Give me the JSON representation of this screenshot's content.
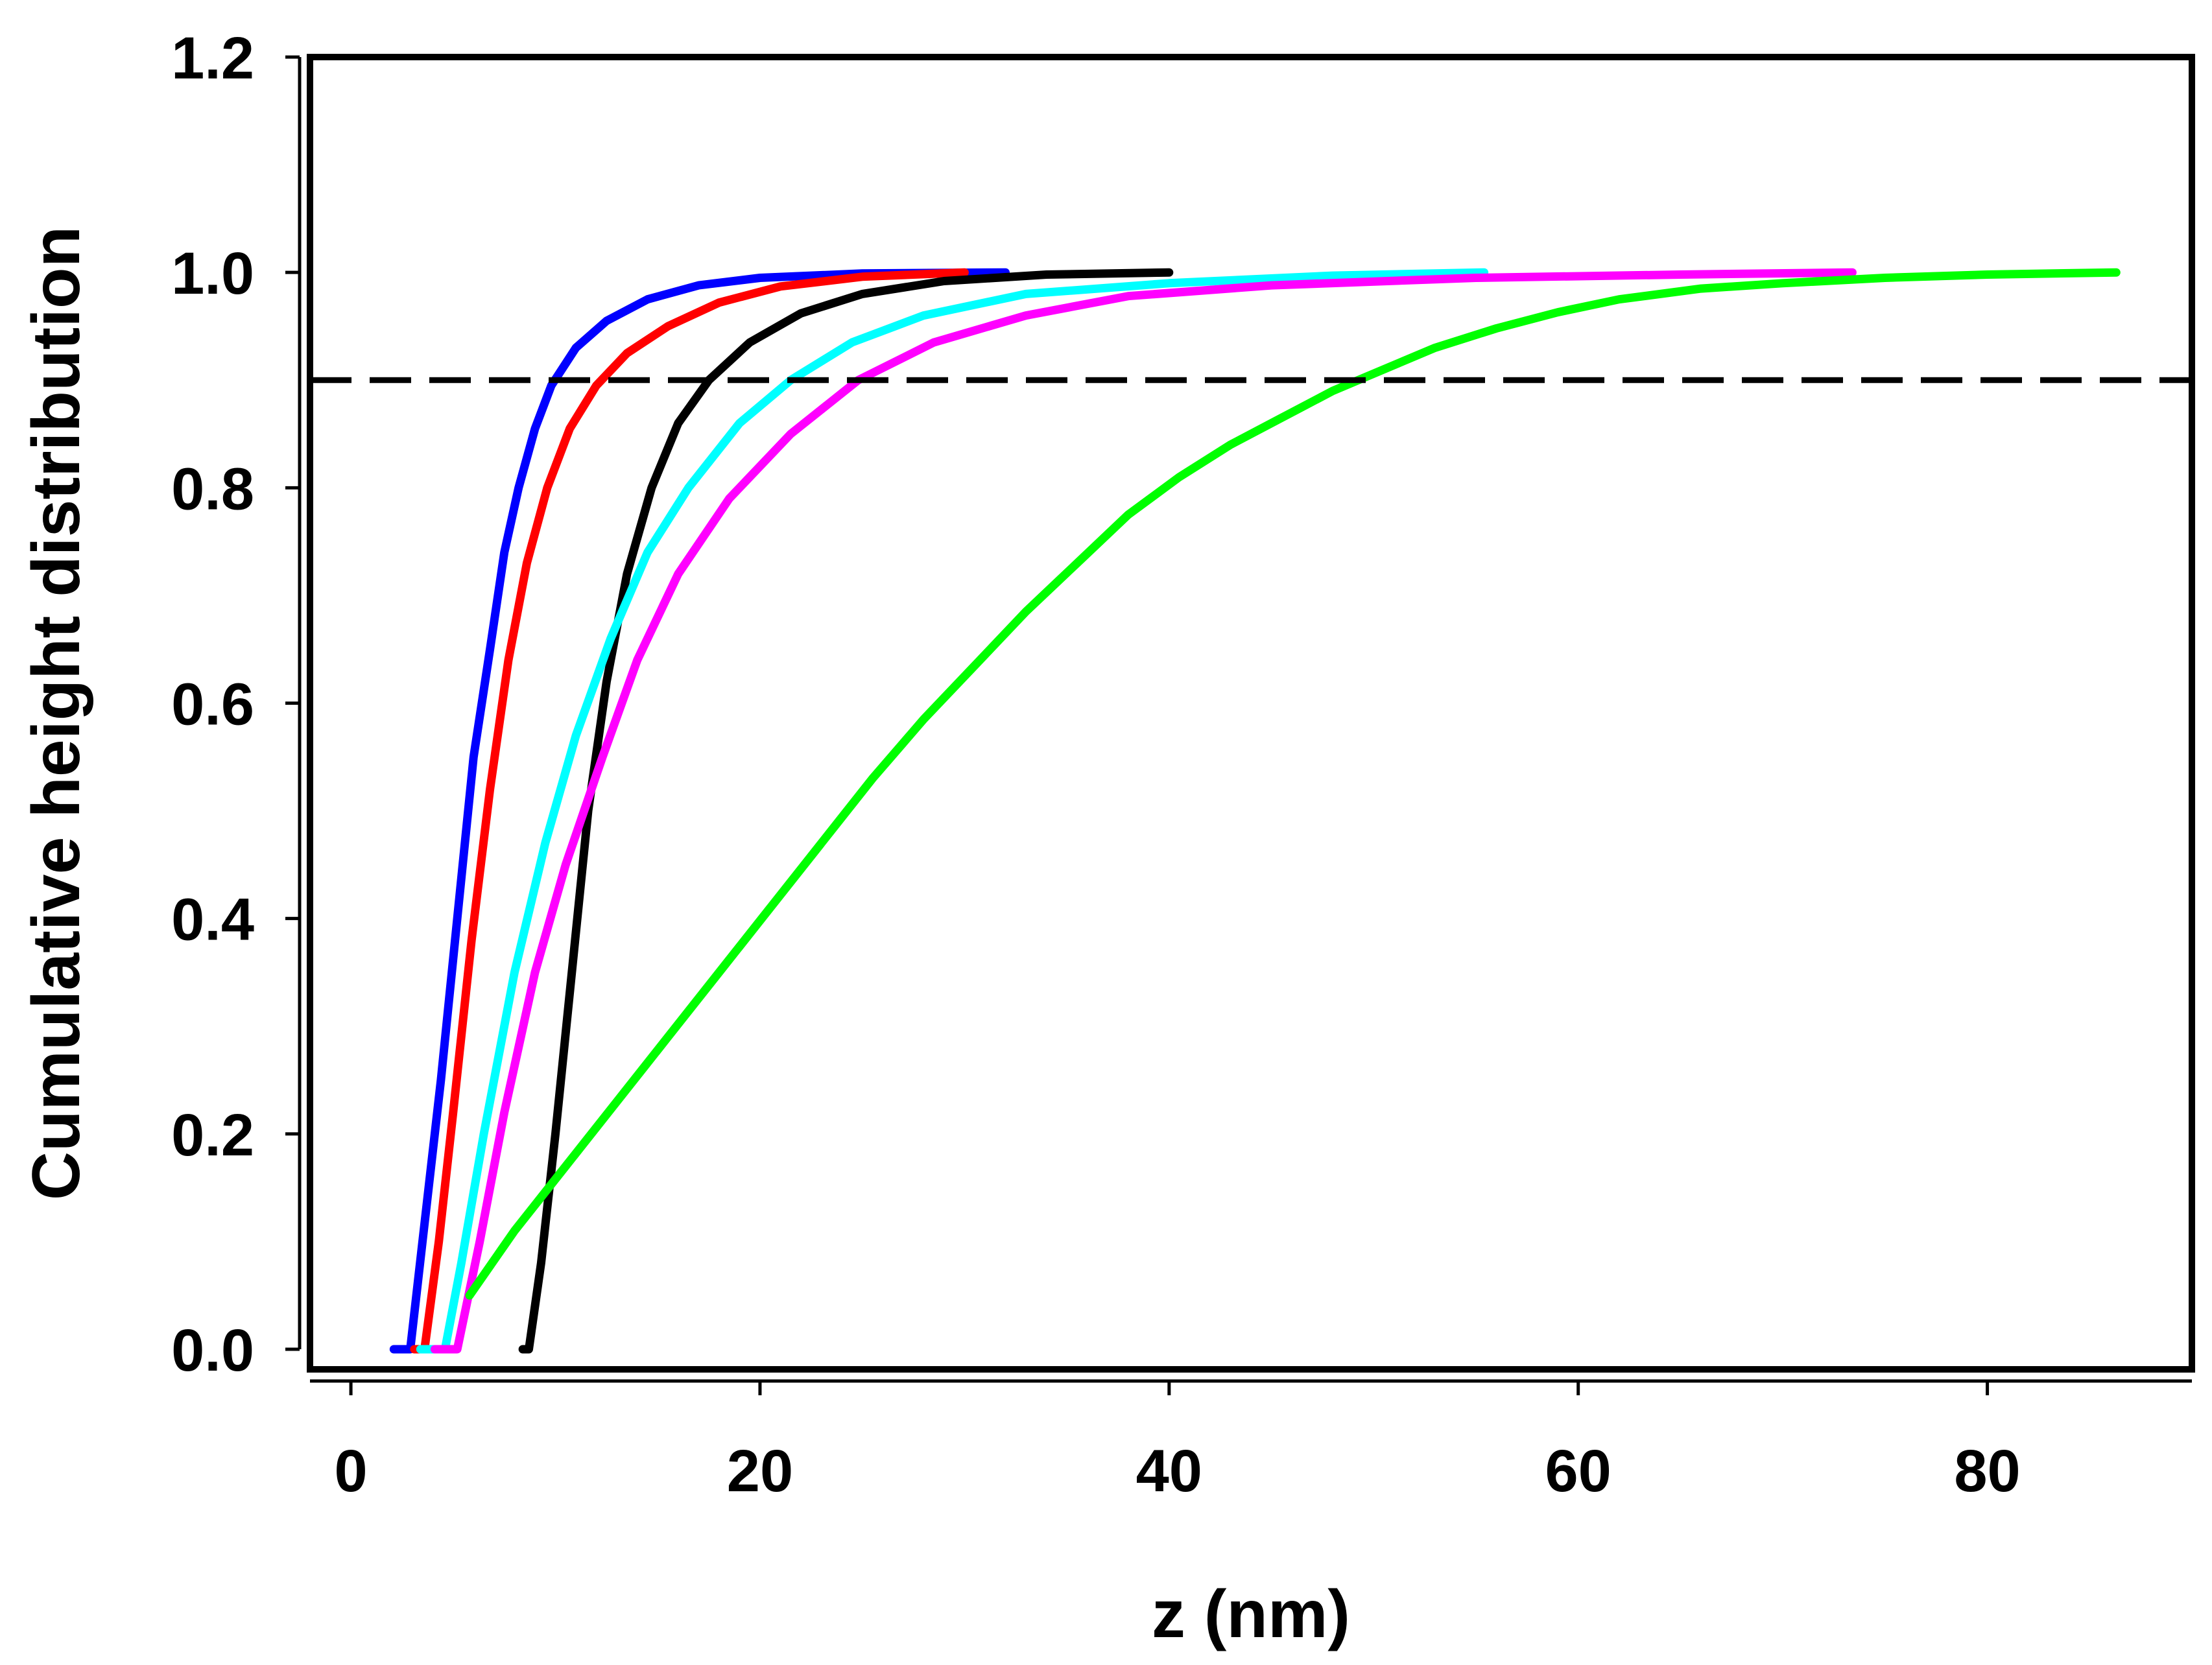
{
  "chart_data": {
    "type": "line",
    "title": "",
    "xlabel": "z (nm)",
    "ylabel": "Cumulative height distribution",
    "xlim": [
      -2,
      90
    ],
    "ylim": [
      0,
      1.2
    ],
    "xticks": [
      "0",
      "20",
      "40",
      "60",
      "80"
    ],
    "xtick_values": [
      0,
      20,
      40,
      60,
      80
    ],
    "yticks": [
      "0.0",
      "0.2",
      "0.4",
      "0.6",
      "0.8",
      "1.0",
      "1.2"
    ],
    "ytick_values": [
      0,
      0.2,
      0.4,
      0.6,
      0.8,
      1.0,
      1.2
    ],
    "grid": false,
    "reference_line": {
      "y": 0.9,
      "style": "dashed",
      "color": "#000000"
    },
    "series": [
      {
        "color": "#0000ff",
        "points": [
          [
            2.1,
            0
          ],
          [
            2.9,
            0
          ],
          [
            3.5,
            0.1
          ],
          [
            4.4,
            0.25
          ],
          [
            5.2,
            0.4
          ],
          [
            6.0,
            0.55
          ],
          [
            6.8,
            0.65
          ],
          [
            7.5,
            0.74
          ],
          [
            8.2,
            0.8
          ],
          [
            9.0,
            0.855
          ],
          [
            9.8,
            0.895
          ],
          [
            11,
            0.93
          ],
          [
            12.5,
            0.955
          ],
          [
            14.5,
            0.975
          ],
          [
            17,
            0.988
          ],
          [
            20,
            0.995
          ],
          [
            25,
            0.999
          ],
          [
            32,
            1.0
          ]
        ]
      },
      {
        "color": "#ff0000",
        "points": [
          [
            3.1,
            0
          ],
          [
            3.6,
            0
          ],
          [
            4.3,
            0.1
          ],
          [
            5.0,
            0.22
          ],
          [
            5.9,
            0.38
          ],
          [
            6.8,
            0.52
          ],
          [
            7.7,
            0.64
          ],
          [
            8.6,
            0.73
          ],
          [
            9.6,
            0.8
          ],
          [
            10.7,
            0.855
          ],
          [
            12,
            0.895
          ],
          [
            13.5,
            0.925
          ],
          [
            15.5,
            0.95
          ],
          [
            18,
            0.972
          ],
          [
            21,
            0.987
          ],
          [
            25,
            0.996
          ],
          [
            30,
            1.0
          ]
        ]
      },
      {
        "color": "#000000",
        "points": [
          [
            8.4,
            0
          ],
          [
            8.7,
            0
          ],
          [
            9.3,
            0.08
          ],
          [
            10.0,
            0.2
          ],
          [
            10.8,
            0.35
          ],
          [
            11.6,
            0.5
          ],
          [
            12.5,
            0.62
          ],
          [
            13.5,
            0.72
          ],
          [
            14.7,
            0.8
          ],
          [
            16,
            0.86
          ],
          [
            17.5,
            0.9
          ],
          [
            19.5,
            0.935
          ],
          [
            22,
            0.962
          ],
          [
            25,
            0.98
          ],
          [
            29,
            0.992
          ],
          [
            34,
            0.998
          ],
          [
            40,
            1.0
          ]
        ]
      },
      {
        "color": "#00ffff",
        "points": [
          [
            3.4,
            0
          ],
          [
            4.6,
            0
          ],
          [
            5.4,
            0.08
          ],
          [
            6.5,
            0.2
          ],
          [
            8,
            0.35
          ],
          [
            9.5,
            0.47
          ],
          [
            11,
            0.57
          ],
          [
            12.7,
            0.66
          ],
          [
            14.5,
            0.74
          ],
          [
            16.5,
            0.8
          ],
          [
            19,
            0.86
          ],
          [
            21.5,
            0.9
          ],
          [
            24.5,
            0.935
          ],
          [
            28,
            0.96
          ],
          [
            33,
            0.98
          ],
          [
            40,
            0.99
          ],
          [
            48,
            0.997
          ],
          [
            55.4,
            1.0
          ]
        ]
      },
      {
        "color": "#ff00ff",
        "points": [
          [
            4.1,
            0
          ],
          [
            5.2,
            0
          ],
          [
            6.3,
            0.1
          ],
          [
            7.5,
            0.22
          ],
          [
            9,
            0.35
          ],
          [
            10.5,
            0.45
          ],
          [
            12.3,
            0.55
          ],
          [
            14,
            0.64
          ],
          [
            16,
            0.72
          ],
          [
            18.5,
            0.79
          ],
          [
            21.5,
            0.85
          ],
          [
            24.8,
            0.9
          ],
          [
            28.5,
            0.935
          ],
          [
            33,
            0.96
          ],
          [
            38,
            0.978
          ],
          [
            45,
            0.988
          ],
          [
            55,
            0.995
          ],
          [
            65,
            0.998
          ],
          [
            73.4,
            1.0
          ]
        ]
      },
      {
        "color": "#00ff00",
        "points": [
          [
            5.8,
            0.05
          ],
          [
            8,
            0.11
          ],
          [
            10.5,
            0.17
          ],
          [
            13,
            0.23
          ],
          [
            15.5,
            0.29
          ],
          [
            18,
            0.35
          ],
          [
            20.5,
            0.41
          ],
          [
            23,
            0.47
          ],
          [
            25.5,
            0.53
          ],
          [
            28,
            0.585
          ],
          [
            30.5,
            0.635
          ],
          [
            33,
            0.685
          ],
          [
            35.5,
            0.73
          ],
          [
            38,
            0.775
          ],
          [
            40.5,
            0.81
          ],
          [
            43,
            0.84
          ],
          [
            45.5,
            0.865
          ],
          [
            48,
            0.89
          ],
          [
            50.5,
            0.91
          ],
          [
            53,
            0.93
          ],
          [
            56,
            0.948
          ],
          [
            59,
            0.963
          ],
          [
            62,
            0.975
          ],
          [
            66,
            0.985
          ],
          [
            70,
            0.99
          ],
          [
            75,
            0.995
          ],
          [
            80,
            0.998
          ],
          [
            86.3,
            1.0
          ]
        ]
      }
    ]
  }
}
